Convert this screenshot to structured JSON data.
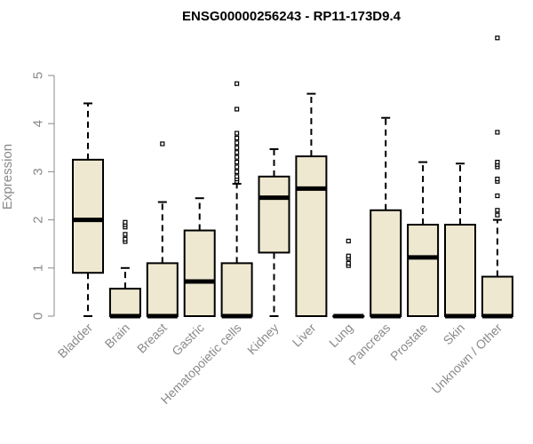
{
  "chart_data": {
    "type": "boxplot",
    "title": "ENSG00000256243 - RP11-173D9.4",
    "ylabel": "Expression",
    "ylim": [
      0,
      5.8
    ],
    "yticks": [
      0,
      1,
      2,
      3,
      4,
      5
    ],
    "box_fill": "#eee8d0",
    "median_color": "#000000",
    "categories": [
      "Bladder",
      "Brain",
      "Breast",
      "Gastric",
      "Hematopoietic cells",
      "Kidney",
      "Liver",
      "Lung",
      "Pancreas",
      "Prostate",
      "Skin",
      "Unknown / Other"
    ],
    "boxes": [
      {
        "whisker_low": 0,
        "q1": 0.9,
        "median": 2.0,
        "q3": 3.25,
        "whisker_high": 4.42,
        "outliers": []
      },
      {
        "whisker_low": 0,
        "q1": 0,
        "median": 0,
        "q3": 0.57,
        "whisker_high": 1.0,
        "outliers": [
          1.55,
          1.6,
          1.7,
          1.85,
          1.9,
          1.95
        ]
      },
      {
        "whisker_low": 0,
        "q1": 0,
        "median": 0,
        "q3": 1.1,
        "whisker_high": 2.37,
        "outliers": [
          3.58
        ]
      },
      {
        "whisker_low": 0,
        "q1": 0,
        "median": 0.72,
        "q3": 1.78,
        "whisker_high": 2.45,
        "outliers": []
      },
      {
        "whisker_low": 0,
        "q1": 0,
        "median": 0,
        "q3": 1.1,
        "whisker_high": 2.75,
        "outliers": [
          2.8,
          2.85,
          2.9,
          3.0,
          3.1,
          3.2,
          3.3,
          3.4,
          3.5,
          3.6,
          3.7,
          3.8,
          4.3,
          4.83
        ]
      },
      {
        "whisker_low": 0,
        "q1": 1.32,
        "median": 2.46,
        "q3": 2.9,
        "whisker_high": 3.47,
        "outliers": []
      },
      {
        "whisker_low": 0,
        "q1": 0,
        "median": 2.65,
        "q3": 3.32,
        "whisker_high": 4.62,
        "outliers": []
      },
      {
        "whisker_low": 0,
        "q1": 0,
        "median": 0,
        "q3": 0,
        "whisker_high": 0,
        "outliers": [
          1.05,
          1.1,
          1.2,
          1.25,
          1.56
        ]
      },
      {
        "whisker_low": 0,
        "q1": 0,
        "median": 0,
        "q3": 2.2,
        "whisker_high": 4.12,
        "outliers": []
      },
      {
        "whisker_low": 0,
        "q1": 0,
        "median": 1.22,
        "q3": 1.9,
        "whisker_high": 3.2,
        "outliers": []
      },
      {
        "whisker_low": 0,
        "q1": 0,
        "median": 0,
        "q3": 1.9,
        "whisker_high": 3.17,
        "outliers": []
      },
      {
        "whisker_low": 0,
        "q1": 0,
        "median": 0,
        "q3": 0.82,
        "whisker_high": 2.0,
        "outliers": [
          2.1,
          2.2,
          2.5,
          2.8,
          2.85,
          3.1,
          3.15,
          3.2,
          3.82,
          5.78
        ]
      }
    ]
  }
}
